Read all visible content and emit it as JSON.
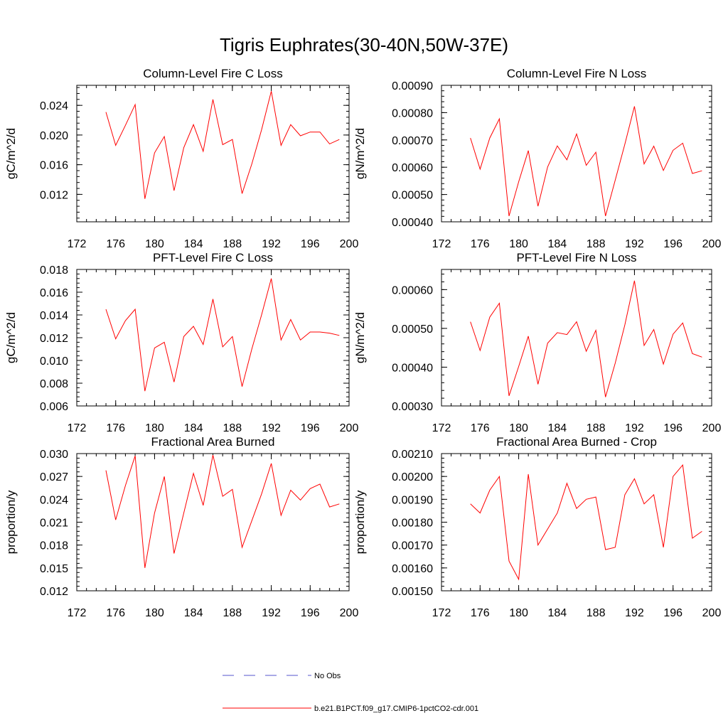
{
  "title": "Tigris Euphrates(30-40N,50W-37E)",
  "colors": {
    "model": "#ff0000",
    "obs": "#5555cc"
  },
  "legend": {
    "entries": [
      {
        "label": "No Obs",
        "style": "dashed",
        "color": "#5555cc"
      },
      {
        "label": "b.e21.B1PCT.f09_g17.CMIP6-1pctCO2-cdr.001",
        "style": "solid",
        "color": "#ff0000"
      }
    ]
  },
  "chart_data": [
    {
      "type": "line",
      "title": "Column-Level Fire C Loss",
      "ylabel": "gC/m^2/d",
      "xlim": [
        172,
        200
      ],
      "ylim": [
        0.0083,
        0.0267
      ],
      "xticks": [
        172,
        176,
        180,
        184,
        188,
        192,
        196,
        200
      ],
      "xtick_labels": [
        "172",
        "176",
        "180",
        "184",
        "188",
        "192",
        "196",
        "200"
      ],
      "yticks": [
        0.012,
        0.016,
        0.02,
        0.024
      ],
      "ytick_labels": [
        "0.012",
        "0.016",
        "0.020",
        "0.024"
      ],
      "series": [
        {
          "x": [
            175,
            176,
            177,
            178,
            179,
            180,
            181,
            182,
            183,
            184,
            185,
            186,
            187,
            188,
            189,
            190,
            191,
            192,
            193,
            194,
            195,
            196,
            197,
            198,
            199
          ],
          "y": [
            0.0231,
            0.0186,
            0.0213,
            0.0241,
            0.0114,
            0.0176,
            0.0198,
            0.0125,
            0.0183,
            0.0214,
            0.0178,
            0.0248,
            0.0187,
            0.0194,
            0.0121,
            0.0161,
            0.0207,
            0.0259,
            0.0186,
            0.0214,
            0.0199,
            0.0204,
            0.0204,
            0.0188,
            0.0194
          ]
        }
      ]
    },
    {
      "type": "line",
      "title": "Column-Level Fire N Loss",
      "ylabel": "gN/m^2/d",
      "xlim": [
        172,
        200
      ],
      "ylim": [
        0.0004,
        0.0009
      ],
      "xticks": [
        172,
        176,
        180,
        184,
        188,
        192,
        196,
        200
      ],
      "xtick_labels": [
        "172",
        "176",
        "180",
        "184",
        "188",
        "192",
        "196",
        "200"
      ],
      "yticks": [
        0.0004,
        0.0005,
        0.0006,
        0.0007,
        0.0008,
        0.0009
      ],
      "ytick_labels": [
        "0.00040",
        "0.00050",
        "0.00060",
        "0.00070",
        "0.00080",
        "0.00090"
      ],
      "series": [
        {
          "x": [
            175,
            176,
            177,
            178,
            179,
            180,
            181,
            182,
            183,
            184,
            185,
            186,
            187,
            188,
            189,
            190,
            191,
            192,
            193,
            194,
            195,
            196,
            197,
            198,
            199
          ],
          "y": [
            0.000707,
            0.000593,
            0.000707,
            0.000777,
            0.000421,
            0.000547,
            0.000661,
            0.000457,
            0.000601,
            0.000678,
            0.000627,
            0.000722,
            0.000607,
            0.000655,
            0.000421,
            0.000552,
            0.000684,
            0.000823,
            0.000612,
            0.000677,
            0.000588,
            0.000662,
            0.000688,
            0.000577,
            0.000587
          ]
        }
      ]
    },
    {
      "type": "line",
      "title": "PFT-Level Fire C Loss",
      "ylabel": "gC/m^2/d",
      "xlim": [
        172,
        200
      ],
      "ylim": [
        0.006,
        0.018
      ],
      "xticks": [
        172,
        176,
        180,
        184,
        188,
        192,
        196,
        200
      ],
      "xtick_labels": [
        "172",
        "176",
        "180",
        "184",
        "188",
        "192",
        "196",
        "200"
      ],
      "yticks": [
        0.006,
        0.008,
        0.01,
        0.012,
        0.014,
        0.016,
        0.018
      ],
      "ytick_labels": [
        "0.006",
        "0.008",
        "0.010",
        "0.012",
        "0.014",
        "0.016",
        "0.018"
      ],
      "series": [
        {
          "x": [
            175,
            176,
            177,
            178,
            179,
            180,
            181,
            182,
            183,
            184,
            185,
            186,
            187,
            188,
            189,
            190,
            191,
            192,
            193,
            194,
            195,
            196,
            197,
            198,
            199
          ],
          "y": [
            0.0145,
            0.0119,
            0.0135,
            0.0145,
            0.0073,
            0.0111,
            0.0116,
            0.0081,
            0.0121,
            0.013,
            0.0114,
            0.0154,
            0.0112,
            0.0121,
            0.0077,
            0.011,
            0.014,
            0.0172,
            0.0118,
            0.0136,
            0.0118,
            0.0125,
            0.0125,
            0.0124,
            0.0122
          ]
        }
      ]
    },
    {
      "type": "line",
      "title": "PFT-Level Fire N Loss",
      "ylabel": "gN/m^2/d",
      "xlim": [
        172,
        200
      ],
      "ylim": [
        0.0003,
        0.000652
      ],
      "xticks": [
        172,
        176,
        180,
        184,
        188,
        192,
        196,
        200
      ],
      "xtick_labels": [
        "172",
        "176",
        "180",
        "184",
        "188",
        "192",
        "196",
        "200"
      ],
      "yticks": [
        0.0003,
        0.0004,
        0.0005,
        0.0006
      ],
      "ytick_labels": [
        "0.00030",
        "0.00040",
        "0.00050",
        "0.00060"
      ],
      "series": [
        {
          "x": [
            175,
            176,
            177,
            178,
            179,
            180,
            181,
            182,
            183,
            184,
            185,
            186,
            187,
            188,
            189,
            190,
            191,
            192,
            193,
            194,
            195,
            196,
            197,
            198,
            199
          ],
          "y": [
            0.000517,
            0.000443,
            0.000529,
            0.000565,
            0.000326,
            0.000402,
            0.00048,
            0.000356,
            0.000462,
            0.000489,
            0.000484,
            0.000517,
            0.000441,
            0.000495,
            0.000323,
            0.00041,
            0.000509,
            0.000623,
            0.000456,
            0.000497,
            0.000408,
            0.000485,
            0.000514,
            0.000435,
            0.000426
          ]
        }
      ]
    },
    {
      "type": "line",
      "title": "Fractional Area Burned",
      "ylabel": "proportion/y",
      "xlim": [
        172,
        200
      ],
      "ylim": [
        0.012,
        0.03
      ],
      "xticks": [
        172,
        176,
        180,
        184,
        188,
        192,
        196,
        200
      ],
      "xtick_labels": [
        "172",
        "176",
        "180",
        "184",
        "188",
        "192",
        "196",
        "200"
      ],
      "yticks": [
        0.012,
        0.015,
        0.018,
        0.021,
        0.024,
        0.027,
        0.03
      ],
      "ytick_labels": [
        "0.012",
        "0.015",
        "0.018",
        "0.021",
        "0.024",
        "0.027",
        "0.030"
      ],
      "series": [
        {
          "x": [
            175,
            176,
            177,
            178,
            179,
            180,
            181,
            182,
            183,
            184,
            185,
            186,
            187,
            188,
            189,
            190,
            191,
            192,
            193,
            194,
            195,
            196,
            197,
            198,
            199
          ],
          "y": [
            0.0278,
            0.0213,
            0.0258,
            0.0297,
            0.015,
            0.0222,
            0.027,
            0.0169,
            0.0222,
            0.0274,
            0.0232,
            0.0298,
            0.0244,
            0.0253,
            0.0177,
            0.0212,
            0.0247,
            0.0287,
            0.0219,
            0.0252,
            0.0239,
            0.0254,
            0.026,
            0.023,
            0.0234
          ]
        }
      ]
    },
    {
      "type": "line",
      "title": "Fractional Area Burned - Crop",
      "ylabel": "proportion/y",
      "xlim": [
        172,
        200
      ],
      "ylim": [
        0.0015,
        0.0021
      ],
      "xticks": [
        172,
        176,
        180,
        184,
        188,
        192,
        196,
        200
      ],
      "xtick_labels": [
        "172",
        "176",
        "180",
        "184",
        "188",
        "192",
        "196",
        "200"
      ],
      "yticks": [
        0.0015,
        0.0016,
        0.0017,
        0.0018,
        0.0019,
        0.002,
        0.0021
      ],
      "ytick_labels": [
        "0.00150",
        "0.00160",
        "0.00170",
        "0.00180",
        "0.00190",
        "0.00200",
        "0.00210"
      ],
      "series": [
        {
          "x": [
            175,
            176,
            177,
            178,
            179,
            180,
            181,
            182,
            183,
            184,
            185,
            186,
            187,
            188,
            189,
            190,
            191,
            192,
            193,
            194,
            195,
            196,
            197,
            198,
            199
          ],
          "y": [
            0.00188,
            0.00184,
            0.00194,
            0.002,
            0.00163,
            0.00155,
            0.00201,
            0.0017,
            0.00177,
            0.00184,
            0.00197,
            0.00186,
            0.0019,
            0.00191,
            0.00168,
            0.00169,
            0.00192,
            0.00199,
            0.00188,
            0.00192,
            0.00169,
            0.002,
            0.00205,
            0.00173,
            0.00176
          ]
        }
      ]
    }
  ]
}
